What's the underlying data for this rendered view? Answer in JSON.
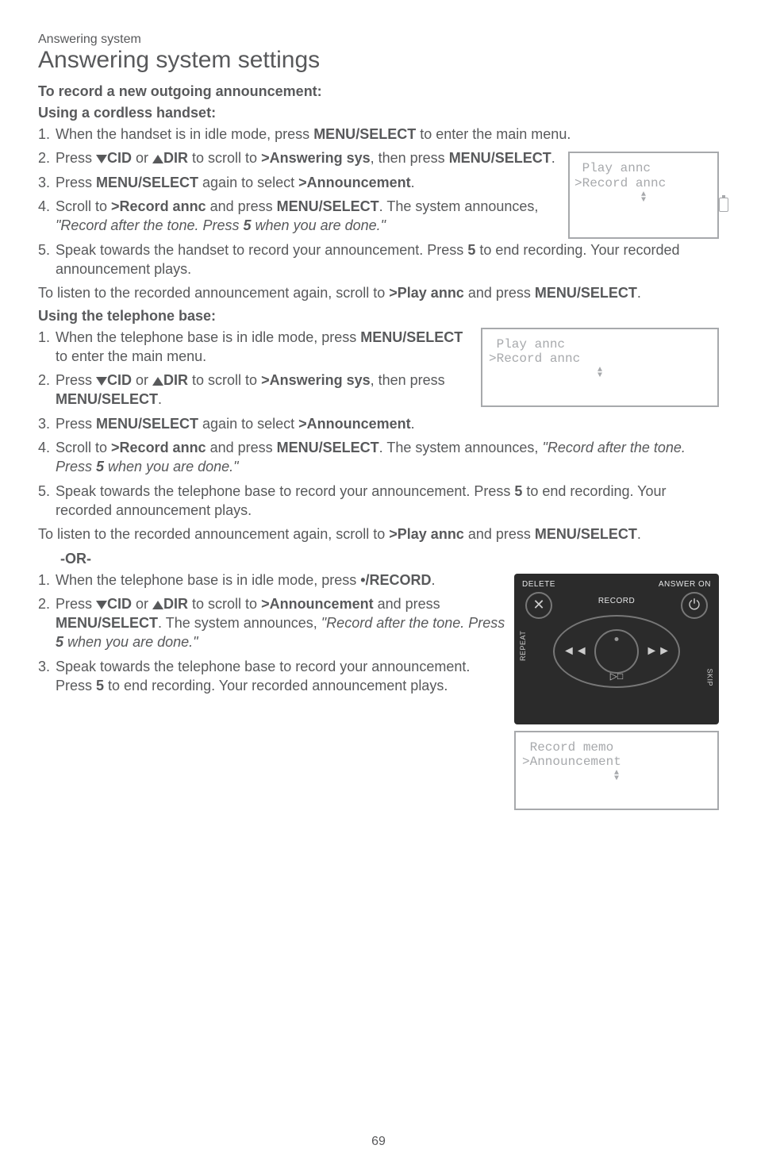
{
  "colors": {
    "text": "#58595b",
    "lcd_border": "#a7a9ac",
    "device_bg": "#2b2b2b",
    "device_text": "#e6e7e8",
    "background": "#ffffff"
  },
  "breadcrumb": "Answering system",
  "page_title": "Answering system settings",
  "heading_record": "To record a new outgoing announcement:",
  "heading_cordless": "Using a cordless handset:",
  "cordless_steps": {
    "1": "When the handset is in idle mode, press ",
    "1b": " to enter the main menu.",
    "2a": "Press ",
    "2b": " or ",
    "2c": " to scroll to ",
    "2_target": ">Answering sys",
    "2d": ", then press ",
    "2_menu": "/SELECT",
    "2e": ".",
    "3a": "Press ",
    "3b": " again to select ",
    "3_target": ">Announcement",
    "3c": ".",
    "4a": "Scroll to ",
    "4_target": ">Record annc",
    "4b": " and press ",
    "4c": ".  The system announces, ",
    "4_quote": "\"Record after the tone. Press ",
    "4_five": "5",
    "4_quote2": " when you are done.\"",
    "5a": "Speak towards the handset to record your announcement. Press ",
    "5_five": "5",
    "5b": " to end recording. Your recorded announcement plays."
  },
  "listen_again_a": "To listen to the recorded announcement again, scroll to ",
  "listen_target": ">Play annc",
  "listen_again_b": " and press ",
  "heading_base": "Using the telephone base:",
  "base_steps": {
    "1a": "When the telephone base is in idle mode, press ",
    "1b": " to enter the main menu.",
    "2a": "Press ",
    "2b": " or ",
    "2c": " to scroll to ",
    "2_target": ">Answering sys",
    "2d": ", then press ",
    "2e": ".",
    "3a": "Press ",
    "3b": " again to select ",
    "3_target": ">Announcement",
    "3c": ".",
    "4a": "Scroll to ",
    "4_target": ">Record annc",
    "4b": " and press ",
    "4c": ". The system announces, ",
    "4_quote": "\"Record after the tone. Press ",
    "4_five": "5",
    "4_quote2": " when you are done.\"",
    "5a": "Speak towards the telephone base to record your announcement. Press ",
    "5_five": "5",
    "5b": " to end recording. Your recorded announcement plays."
  },
  "or_label": "-OR-",
  "alt_steps": {
    "1a": "When the telephone base is in idle mode, press ",
    "1_btn": "•/RECORD",
    "1b": ".",
    "2a": "Press ",
    "2b": " or ",
    "2c": " to scroll to ",
    "2_target": ">Announcement",
    "2d": " and press ",
    "2e": ". The system announces, ",
    "2_quote": "\"Record after the tone. Press ",
    "2_five": "5",
    "2_quote2": " when you are done.\"",
    "3a": "Speak towards the telephone base to record your announcement. Press ",
    "3_five": "5",
    "3b": " to end recording. Your recorded announcement plays."
  },
  "labels": {
    "menu": "MENU",
    "select": "/SELECT",
    "menu_sc": "MENU",
    "select_sc": "SELECT",
    "cid": "CID",
    "dir": "DIR"
  },
  "lcd_handset": {
    "line1": " Play annc",
    "line2": ">Record annc"
  },
  "lcd_base1": {
    "line1": " Play annc",
    "line2": ">Record annc"
  },
  "lcd_base2": {
    "line1": " Record memo",
    "line2": ">Announcement"
  },
  "device": {
    "delete": "DELETE",
    "answer_on": "ANSWER ON",
    "record": "RECORD",
    "repeat": "REPEAT",
    "skip": "SKIP",
    "x": "✕",
    "power": "⏻",
    "rew": "◄◄",
    "fwd": "►►",
    "playstop": "▷□"
  },
  "page_number": "69"
}
